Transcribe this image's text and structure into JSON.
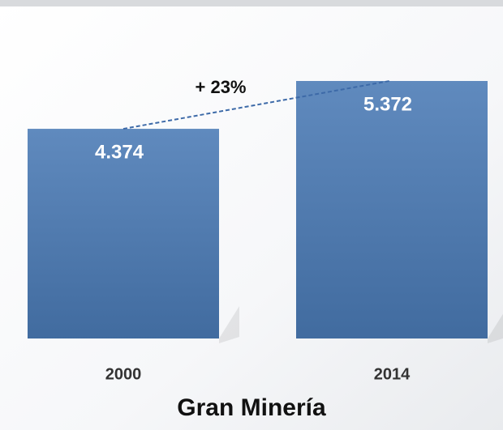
{
  "chart_data": {
    "type": "bar",
    "title": "Gran Minería",
    "categories": [
      "2000",
      "2014"
    ],
    "values": [
      4374,
      5372
    ],
    "value_labels": [
      "4.374",
      "5.372"
    ],
    "color": "#4a7ab5",
    "annotation": "+ 23%"
  }
}
